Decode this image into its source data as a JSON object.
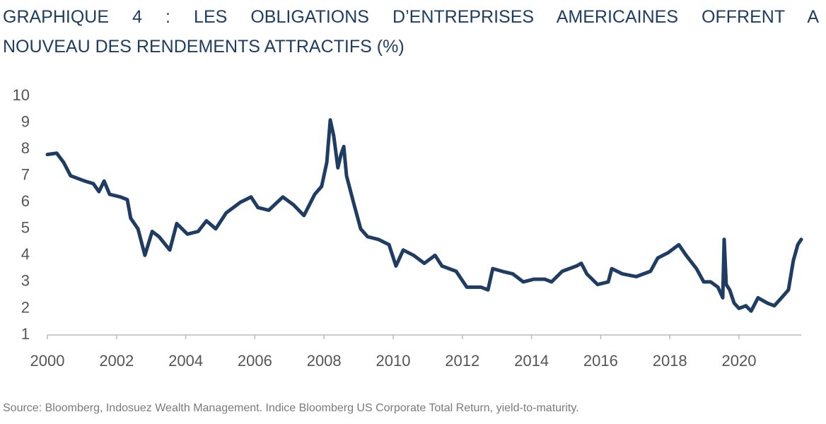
{
  "chart_data": {
    "type": "line",
    "title_lines": [
      "GRAPHIQUE 4 : LES OBLIGATIONS D’ENTREPRISES AMERICAINES OFFRENT A",
      "NOUVEAU DES RENDEMENTS ATTRACTIFS (%)"
    ],
    "source": "Source: Bloomberg, Indosuez Wealth Management. Indice Bloomberg US Corporate Total Return, yield-to-maturity.",
    "x": [
      2000.0,
      2000.27,
      2000.47,
      2000.67,
      2001.08,
      2001.33,
      2001.49,
      2001.64,
      2001.8,
      2002.11,
      2002.31,
      2002.41,
      2002.62,
      2002.82,
      2003.03,
      2003.23,
      2003.54,
      2003.74,
      2004.05,
      2004.36,
      2004.6,
      2004.87,
      2005.17,
      2005.58,
      2005.89,
      2006.09,
      2006.4,
      2006.81,
      2007.12,
      2007.42,
      2007.73,
      2007.93,
      2008.08,
      2008.18,
      2008.28,
      2008.4,
      2008.49,
      2008.57,
      2008.65,
      2008.85,
      2009.06,
      2009.26,
      2009.57,
      2009.88,
      2010.08,
      2010.29,
      2010.59,
      2010.9,
      2011.21,
      2011.41,
      2011.82,
      2012.13,
      2012.54,
      2012.74,
      2012.88,
      2013.15,
      2013.46,
      2013.76,
      2014.07,
      2014.38,
      2014.58,
      2014.89,
      2015.3,
      2015.44,
      2015.6,
      2015.91,
      2016.22,
      2016.32,
      2016.63,
      2017.03,
      2017.44,
      2017.65,
      2017.95,
      2018.26,
      2018.47,
      2018.77,
      2018.98,
      2019.18,
      2019.39,
      2019.53,
      2019.57,
      2019.63,
      2019.73,
      2019.86,
      2020.0,
      2020.2,
      2020.35,
      2020.55,
      2020.82,
      2021.02,
      2021.23,
      2021.43,
      2021.57,
      2021.7,
      2021.8
    ],
    "series": [
      {
        "name": "yield-to-maturity",
        "color": "#1f3d62",
        "values": [
          7.8,
          7.85,
          7.5,
          7.0,
          6.8,
          6.7,
          6.4,
          6.8,
          6.3,
          6.2,
          6.1,
          5.4,
          5.0,
          4.0,
          4.9,
          4.7,
          4.2,
          5.2,
          4.8,
          4.9,
          5.3,
          5.0,
          5.6,
          6.0,
          6.2,
          5.8,
          5.7,
          6.2,
          5.9,
          5.5,
          6.3,
          6.6,
          7.5,
          9.1,
          8.5,
          7.3,
          7.8,
          8.1,
          7.0,
          6.0,
          5.0,
          4.7,
          4.6,
          4.4,
          3.6,
          4.2,
          4.0,
          3.7,
          4.0,
          3.6,
          3.4,
          2.8,
          2.8,
          2.7,
          3.5,
          3.4,
          3.3,
          3.0,
          3.1,
          3.1,
          3.0,
          3.4,
          3.6,
          3.7,
          3.3,
          2.9,
          3.0,
          3.5,
          3.3,
          3.2,
          3.4,
          3.9,
          4.1,
          4.4,
          4.0,
          3.5,
          3.0,
          3.0,
          2.8,
          2.4,
          4.6,
          2.9,
          2.7,
          2.2,
          2.0,
          2.1,
          1.9,
          2.4,
          2.2,
          2.1,
          2.4,
          2.7,
          3.8,
          4.4,
          4.6
        ]
      }
    ],
    "xlim": [
      2000,
      2021.8
    ],
    "xticks": [
      2000,
      2002,
      2004,
      2006,
      2008,
      2010,
      2012,
      2014,
      2016,
      2018,
      2020
    ],
    "ylim": [
      1,
      10
    ],
    "yticks": [
      1,
      2,
      3,
      4,
      5,
      6,
      7,
      8,
      9,
      10
    ],
    "grid": false
  }
}
